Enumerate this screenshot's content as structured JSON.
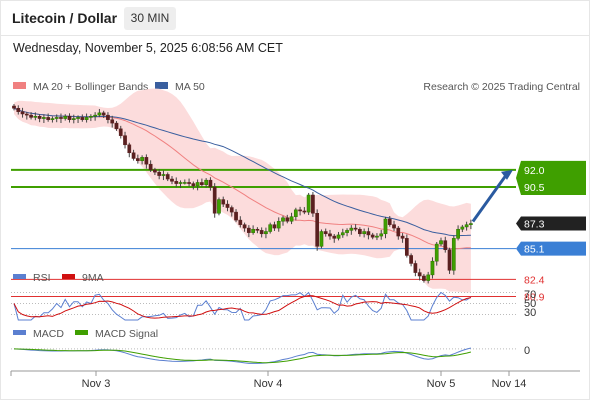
{
  "header": {
    "title": "Litecoin / Dollar",
    "timeframe": "30 MIN",
    "datetime": "Wednesday, November 5, 2025 6:08:56 AM CET"
  },
  "price_panel": {
    "legend": [
      {
        "label": "MA 20 + Bollinger Bands",
        "color": "#f08080"
      },
      {
        "label": "MA 50",
        "color": "#3a5f9f"
      }
    ],
    "credit": "Research © 2025 Trading Central"
  },
  "levels": [
    {
      "label": "92.0",
      "value": 92.0,
      "kind": "resistance",
      "color": "#3f9f00"
    },
    {
      "label": "90.5",
      "value": 90.5,
      "kind": "resistance",
      "color": "#3f9f00"
    },
    {
      "label": "87.3",
      "value": 87.3,
      "kind": "last",
      "color": "#222222"
    },
    {
      "label": "85.1",
      "value": 85.1,
      "kind": "pivot",
      "color": "#3a7fd5"
    },
    {
      "label": "82.4",
      "value": 82.4,
      "kind": "support",
      "color": "#e03030"
    },
    {
      "label": "80.9",
      "value": 80.9,
      "kind": "support",
      "color": "#e03030"
    }
  ],
  "rsi_panel": {
    "legend": [
      {
        "label": "RSI",
        "color": "#5b7fd0"
      },
      {
        "label": "9MA",
        "color": "#d01010"
      }
    ],
    "ticks": [
      "70",
      "50",
      "30"
    ]
  },
  "macd_panel": {
    "legend": [
      {
        "label": "MACD",
        "color": "#5b7fd0"
      },
      {
        "label": "MACD Signal",
        "color": "#3f9f00"
      }
    ],
    "ticks": [
      "0"
    ]
  },
  "x_axis": {
    "labels": [
      "Nov 3",
      "Nov 4",
      "Nov 5",
      "Nov 14"
    ]
  },
  "chart_data": {
    "type": "candlestick",
    "y_range": [
      79.5,
      93.5
    ],
    "close": [
      97.4,
      97.1,
      96.9,
      96.8,
      96.6,
      96.7,
      96.5,
      96.6,
      96.4,
      96.5,
      96.6,
      96.5,
      96.7,
      96.4,
      96.5,
      96.6,
      96.4,
      96.6,
      96.7,
      96.8,
      97.0,
      96.8,
      96.4,
      96.1,
      95.6,
      95.0,
      94.2,
      93.5,
      93.0,
      92.8,
      93.1,
      92.5,
      92.0,
      91.8,
      91.5,
      91.6,
      91.2,
      91.0,
      90.8,
      90.9,
      90.9,
      90.8,
      90.6,
      90.9,
      90.7,
      91.1,
      90.5,
      88.2,
      89.4,
      89.0,
      88.7,
      88.3,
      87.6,
      87.2,
      86.9,
      86.5,
      86.8,
      86.7,
      86.4,
      86.6,
      87.2,
      86.9,
      87.5,
      87.8,
      87.5,
      87.9,
      88.5,
      88.4,
      88.3,
      89.8,
      88.2,
      85.3,
      86.6,
      86.4,
      86.2,
      86.0,
      86.3,
      86.5,
      86.7,
      86.9,
      86.8,
      86.4,
      86.6,
      86.3,
      86.1,
      86.2,
      86.4,
      87.7,
      87.2,
      86.9,
      86.2,
      86.0,
      84.5,
      83.8,
      83.0,
      82.7,
      82.3,
      82.8,
      84.0,
      85.5,
      85.8,
      85.0,
      83.2,
      86.0,
      86.8,
      87.0,
      87.2,
      87.3
    ],
    "rsi_range": [
      20,
      80
    ],
    "macd_range": [
      -2.2,
      0.8
    ]
  }
}
